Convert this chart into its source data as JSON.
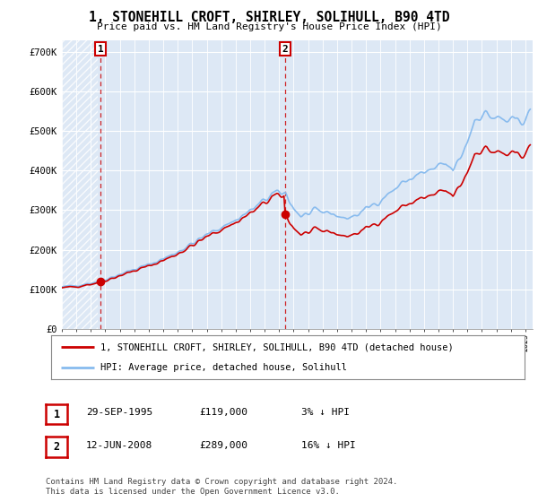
{
  "title": "1, STONEHILL CROFT, SHIRLEY, SOLIHULL, B90 4TD",
  "subtitle": "Price paid vs. HM Land Registry's House Price Index (HPI)",
  "ylabel_values": [
    "£0",
    "£100K",
    "£200K",
    "£300K",
    "£400K",
    "£500K",
    "£600K",
    "£700K"
  ],
  "yticks": [
    0,
    100000,
    200000,
    300000,
    400000,
    500000,
    600000,
    700000
  ],
  "ylim": [
    0,
    730000
  ],
  "sale1_date_idx": 32,
  "sale1_price": 119000,
  "sale1_label": "1",
  "sale2_date_idx": 184,
  "sale2_price": 289000,
  "sale2_label": "2",
  "line1_color": "#cc0000",
  "line2_color": "#88bbee",
  "marker_color": "#cc0000",
  "legend1": "1, STONEHILL CROFT, SHIRLEY, SOLIHULL, B90 4TD (detached house)",
  "legend2": "HPI: Average price, detached house, Solihull",
  "table_row1": [
    "1",
    "29-SEP-1995",
    "£119,000",
    "3% ↓ HPI"
  ],
  "table_row2": [
    "2",
    "12-JUN-2008",
    "£289,000",
    "16% ↓ HPI"
  ],
  "footnote": "Contains HM Land Registry data © Crown copyright and database right 2024.\nThis data is licensed under the Open Government Licence v3.0.",
  "bg_hatch_color": "#dde8f5",
  "bg_plain_color": "#dde8f5",
  "grid_color": "#ffffff",
  "xlim_start": 1993.0,
  "xlim_end": 2025.5
}
